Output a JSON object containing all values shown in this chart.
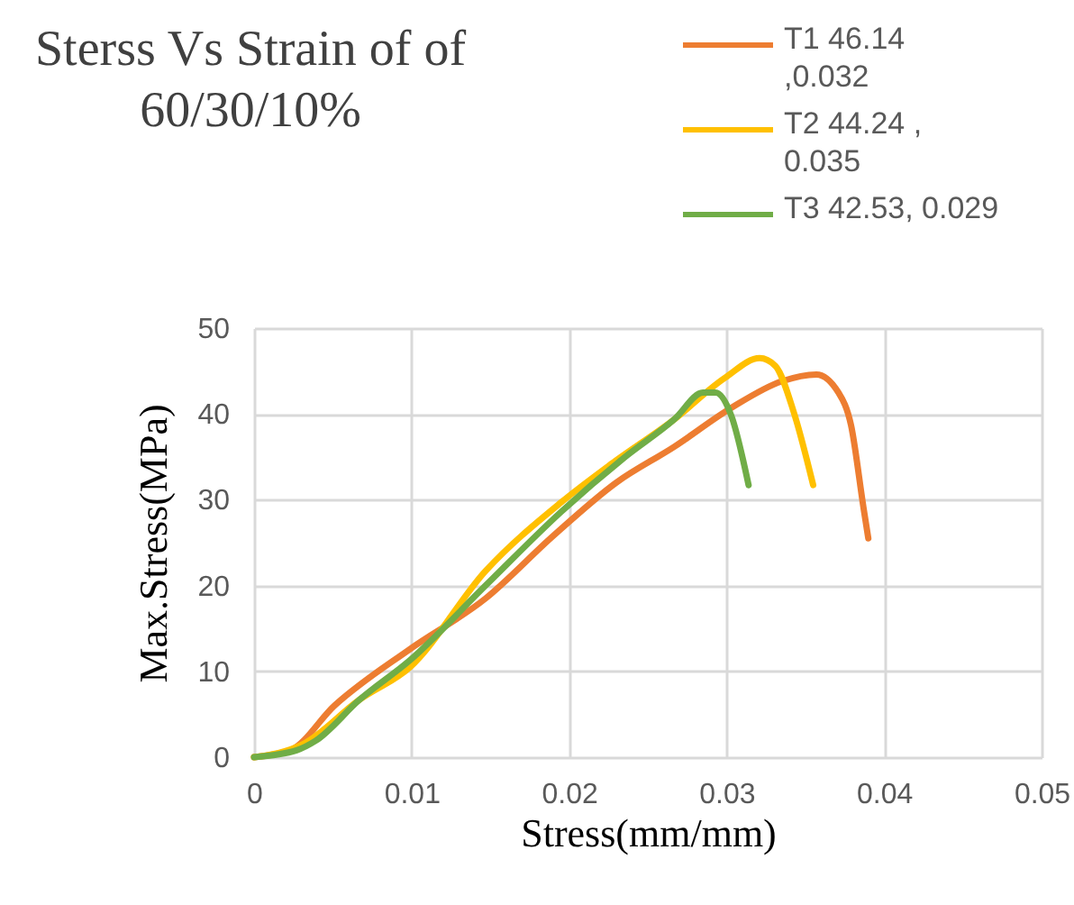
{
  "chart_data": {
    "type": "line",
    "title": "Sterss Vs Strain of of 60/30/10%",
    "xlabel": "Stress(mm/mm)",
    "ylabel": "Max.Stress(MPa)",
    "xlim": [
      0,
      0.05
    ],
    "xticks": [
      0,
      0.01,
      0.02,
      0.03,
      0.04,
      0.05
    ],
    "ylim": [
      0,
      50
    ],
    "yticks": [
      0,
      10,
      20,
      30,
      40,
      50
    ],
    "grid": true,
    "legend": "top right",
    "marker": "none",
    "line_style": "solid",
    "series": [
      {
        "name": "T1    46.14 ,0.032",
        "color": "#ed7d31",
        "x": [
          0,
          0.0023,
          0.0051,
          0.0099,
          0.0147,
          0.019,
          0.023,
          0.0267,
          0.0303,
          0.0335,
          0.0357,
          0.0371,
          0.0379,
          0.0387,
          0.039
        ],
        "values": [
          0,
          0.8,
          6,
          12.6,
          18.5,
          25.8,
          32,
          36.2,
          40.7,
          43.8,
          44.6,
          42.5,
          38.7,
          29,
          25.5
        ]
      },
      {
        "name": "T2   44.24 , 0.035",
        "color": "#ffc000",
        "x": [
          0,
          0.0031,
          0.0067,
          0.0099,
          0.0147,
          0.0195,
          0.0227,
          0.0267,
          0.0299,
          0.0321,
          0.0331,
          0.0343,
          0.0355
        ],
        "values": [
          0,
          1.5,
          6.7,
          10.5,
          21.7,
          29.7,
          34.2,
          39.4,
          44.2,
          46.5,
          45.6,
          40,
          31.7
        ]
      },
      {
        "name": "T3  42.53, 0.029",
        "color": "#70ad47",
        "x": [
          0,
          0.0027,
          0.0039,
          0.0067,
          0.0099,
          0.0147,
          0.0195,
          0.0235,
          0.0267,
          0.0285,
          0.0293,
          0.0303,
          0.0314
        ],
        "values": [
          0,
          0.8,
          1.9,
          6.7,
          11.3,
          20,
          28.6,
          34.9,
          39.4,
          42.5,
          42.5,
          39.8,
          31.7
        ]
      }
    ]
  }
}
